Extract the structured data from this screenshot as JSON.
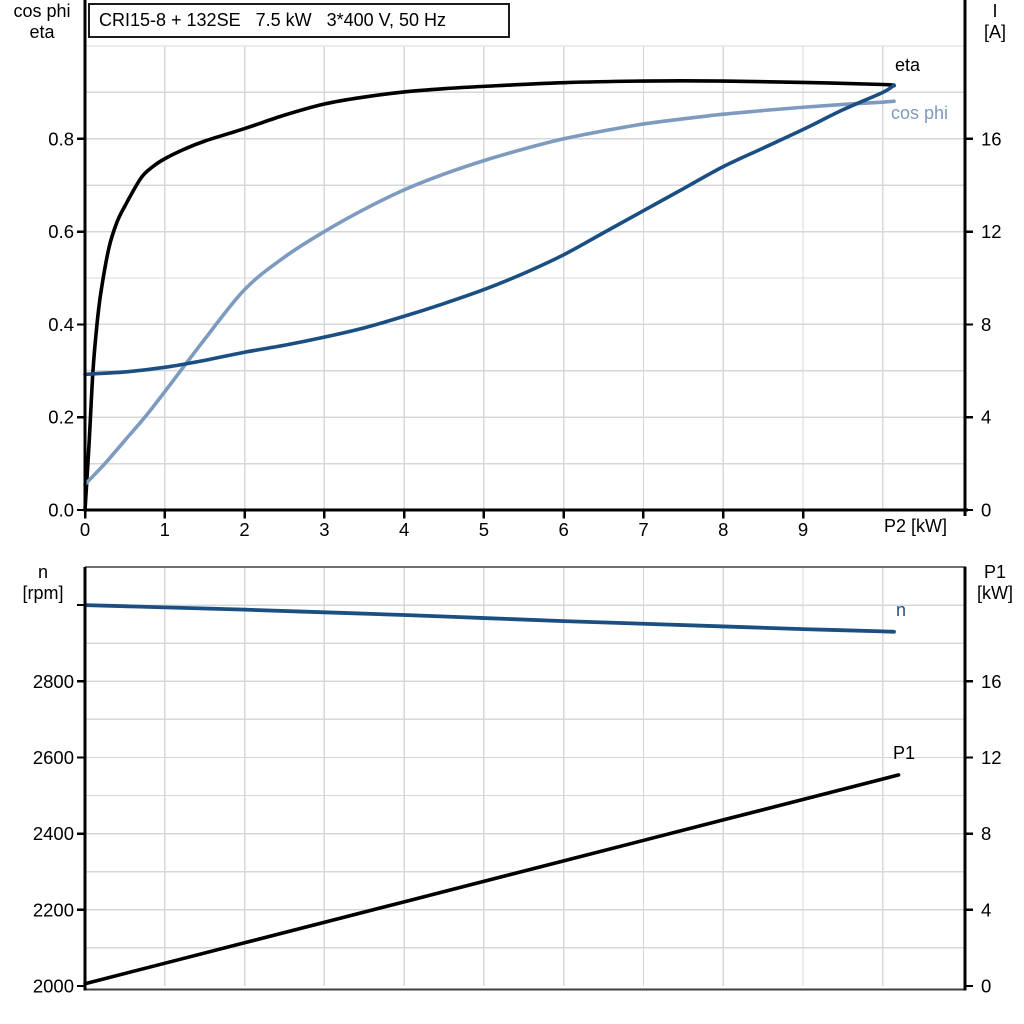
{
  "colors": {
    "grid": "#d4d8db",
    "axis": "#000000",
    "frame_dark": "#6e6e6e",
    "frame_thin": "#3f3f3f",
    "eta_black": "#000000",
    "current_blue": "#1b4f82",
    "cosphi_blue": "#7d9abf"
  },
  "chart_data": [
    {
      "id": "top",
      "type": "line",
      "title": "CRI15-8 + 132SE   7.5 kW   3*400 V, 50 Hz",
      "x": {
        "label": "P2 [kW]",
        "min": 0,
        "max": 11.03,
        "grid": 1,
        "ticks": [
          [
            0,
            "0"
          ],
          [
            1,
            "1"
          ],
          [
            2,
            "2"
          ],
          [
            3,
            "3"
          ],
          [
            4,
            "4"
          ],
          [
            5,
            "5"
          ],
          [
            6,
            "6"
          ],
          [
            7,
            "7"
          ],
          [
            8,
            "8"
          ],
          [
            9,
            "9"
          ]
        ]
      },
      "y_left": {
        "label_line1": "cos phi",
        "label_line2": "eta",
        "min": 0,
        "max": 1.0,
        "grid": 0.1,
        "ticks": [
          [
            0,
            "0.0"
          ],
          [
            0.2,
            "0.2"
          ],
          [
            0.4,
            "0.4"
          ],
          [
            0.6,
            "0.6"
          ],
          [
            0.8,
            "0.8"
          ]
        ]
      },
      "y_right": {
        "label_line1": "I",
        "label_line2": "[A]",
        "min": 0,
        "max": 20,
        "grid": 2,
        "ticks": [
          [
            0,
            "0"
          ],
          [
            4,
            "4"
          ],
          [
            8,
            "8"
          ],
          [
            12,
            "12"
          ],
          [
            16,
            "16"
          ]
        ]
      },
      "series": [
        {
          "id": "eta",
          "name": "eta",
          "label": "eta",
          "axis": "left",
          "color": "#000000",
          "width": 3.6,
          "points": [
            [
              0,
              0
            ],
            [
              0.05,
              0.14
            ],
            [
              0.1,
              0.3
            ],
            [
              0.15,
              0.4
            ],
            [
              0.2,
              0.47
            ],
            [
              0.3,
              0.565
            ],
            [
              0.4,
              0.62
            ],
            [
              0.5,
              0.655
            ],
            [
              0.7,
              0.715
            ],
            [
              0.85,
              0.74
            ],
            [
              1,
              0.757
            ],
            [
              1.25,
              0.778
            ],
            [
              1.5,
              0.795
            ],
            [
              2,
              0.822
            ],
            [
              2.5,
              0.851
            ],
            [
              3,
              0.875
            ],
            [
              3.5,
              0.89
            ],
            [
              4,
              0.901
            ],
            [
              4.5,
              0.908
            ],
            [
              5,
              0.913
            ],
            [
              6,
              0.921
            ],
            [
              7,
              0.9245
            ],
            [
              8,
              0.9245
            ],
            [
              9,
              0.9215
            ],
            [
              10,
              0.917
            ],
            [
              10.14,
              0.9145
            ]
          ]
        },
        {
          "id": "cosphi",
          "name": "cos phi",
          "label": "cos phi",
          "axis": "left",
          "color": "#7d9abf",
          "width": 3.6,
          "points": [
            [
              0,
              0.055
            ],
            [
              0.25,
              0.1
            ],
            [
              0.5,
              0.15
            ],
            [
              0.75,
              0.2
            ],
            [
              1,
              0.255
            ],
            [
              1.5,
              0.368
            ],
            [
              2,
              0.475
            ],
            [
              2.5,
              0.545
            ],
            [
              3,
              0.6
            ],
            [
              3.5,
              0.648
            ],
            [
              4,
              0.69
            ],
            [
              4.5,
              0.724
            ],
            [
              5,
              0.753
            ],
            [
              5.5,
              0.778
            ],
            [
              6,
              0.8
            ],
            [
              6.5,
              0.817
            ],
            [
              7,
              0.832
            ],
            [
              7.5,
              0.843
            ],
            [
              8,
              0.853
            ],
            [
              8.5,
              0.861
            ],
            [
              9,
              0.868
            ],
            [
              9.5,
              0.874
            ],
            [
              10,
              0.879
            ],
            [
              10.14,
              0.881
            ]
          ]
        },
        {
          "id": "I",
          "name": "I",
          "label": "I",
          "axis": "right",
          "color": "#1b4f82",
          "width": 3.6,
          "points": [
            [
              0,
              5.85
            ],
            [
              0.5,
              5.95
            ],
            [
              1,
              6.15
            ],
            [
              1.5,
              6.45
            ],
            [
              2,
              6.8
            ],
            [
              2.5,
              7.1
            ],
            [
              3,
              7.45
            ],
            [
              3.5,
              7.85
            ],
            [
              4,
              8.35
            ],
            [
              4.5,
              8.9
            ],
            [
              5,
              9.5
            ],
            [
              5.5,
              10.2
            ],
            [
              6,
              11.0
            ],
            [
              6.5,
              11.95
            ],
            [
              7,
              12.9
            ],
            [
              7.5,
              13.85
            ],
            [
              8,
              14.8
            ],
            [
              8.5,
              15.6
            ],
            [
              9,
              16.4
            ],
            [
              9.5,
              17.25
            ],
            [
              10,
              18.0
            ],
            [
              10.14,
              18.32
            ]
          ]
        }
      ]
    },
    {
      "id": "bottom",
      "type": "line",
      "x": {
        "label": "",
        "min": 0,
        "max": 11.03,
        "grid": 1,
        "ticks": []
      },
      "y_left": {
        "label_line1": "n",
        "label_line2": "[rpm]",
        "min": 2000,
        "max": 3100,
        "grid": 100,
        "ticks": [
          [
            2000,
            "2000"
          ],
          [
            2200,
            "2200"
          ],
          [
            2400,
            "2400"
          ],
          [
            2600,
            "2600"
          ],
          [
            2800,
            "2800"
          ],
          [
            3000,
            ""
          ]
        ]
      },
      "y_right": {
        "label_line1": "P1",
        "label_line2": "[kW]",
        "min": 0,
        "max": 22,
        "grid": 2,
        "ticks": [
          [
            0,
            "0"
          ],
          [
            4,
            "4"
          ],
          [
            8,
            "8"
          ],
          [
            12,
            "12"
          ],
          [
            16,
            "16"
          ]
        ]
      },
      "series": [
        {
          "id": "n",
          "name": "n",
          "label": "n",
          "axis": "left",
          "color": "#1b4f82",
          "width": 3.8,
          "points": [
            [
              0,
              3000
            ],
            [
              1,
              2994
            ],
            [
              2,
              2988
            ],
            [
              3,
              2981
            ],
            [
              4,
              2974
            ],
            [
              5,
              2966
            ],
            [
              6,
              2958
            ],
            [
              7,
              2951
            ],
            [
              8,
              2944
            ],
            [
              9,
              2937
            ],
            [
              10,
              2931
            ],
            [
              10.14,
              2930
            ]
          ]
        },
        {
          "id": "P1",
          "name": "P1",
          "label": "P1",
          "axis": "right",
          "color": "#000000",
          "width": 3.6,
          "points": [
            [
              0,
              0.12
            ],
            [
              2,
              2.27
            ],
            [
              4,
              4.42
            ],
            [
              6,
              6.57
            ],
            [
              8,
              8.72
            ],
            [
              10,
              10.87
            ],
            [
              10.14,
              11.02
            ]
          ]
        }
      ]
    }
  ]
}
